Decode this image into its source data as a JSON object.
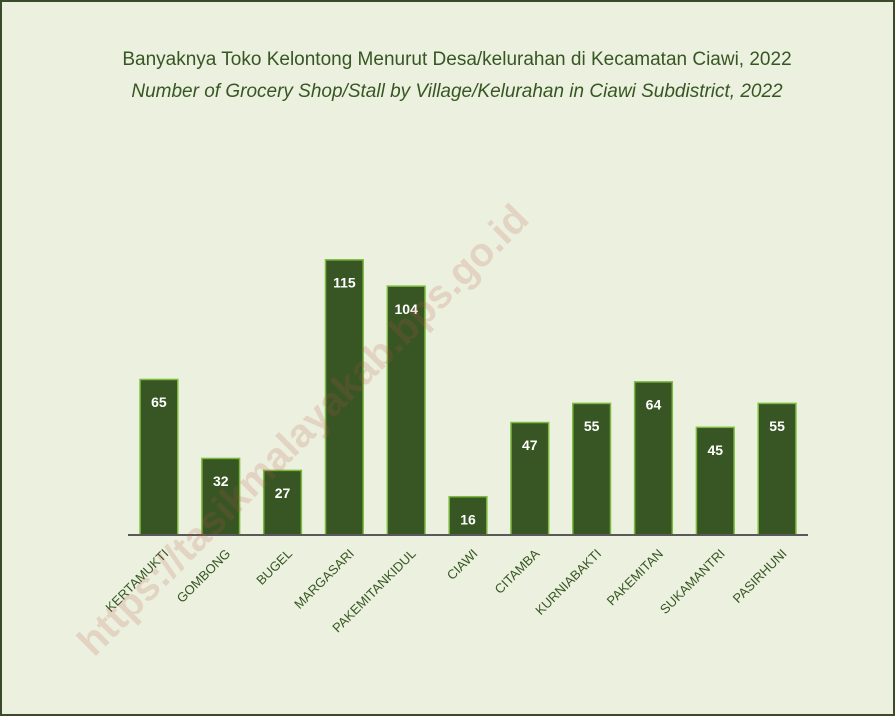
{
  "chart_data": {
    "type": "bar",
    "title": "Banyaknya Toko Kelontong Menurut Desa/kelurahan di Kecamatan Ciawi, 2022",
    "subtitle": "Number of Grocery Shop/Stall by Village/Kelurahan in Ciawi Subdistrict, 2022",
    "categories": [
      "KERTAMUKTI",
      "GOMBONG",
      "BUGEL",
      "MARGASARI",
      "PAKEMITANKIDUL",
      "CIAWI",
      "CITAMBA",
      "KURNIABAKTI",
      "PAKEMITAN",
      "SUKAMANTRI",
      "PASIRHUNI"
    ],
    "values": [
      65,
      32,
      27,
      115,
      104,
      16,
      47,
      55,
      64,
      45,
      55
    ],
    "color": "#375623",
    "ylim": [
      0,
      140
    ],
    "watermark": "https://tasikmalayakab.bps.go.id"
  }
}
